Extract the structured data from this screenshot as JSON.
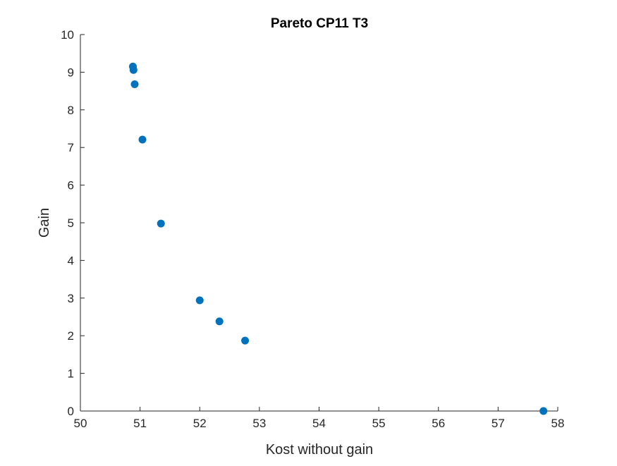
{
  "chart_data": {
    "type": "scatter",
    "title": "Pareto CP11 T3",
    "xlabel": "Kost without gain",
    "ylabel": "Gain",
    "xlim": [
      50,
      58
    ],
    "ylim": [
      0,
      10
    ],
    "xticks": [
      50,
      51,
      52,
      53,
      54,
      55,
      56,
      57,
      58
    ],
    "yticks": [
      0,
      1,
      2,
      3,
      4,
      5,
      6,
      7,
      8,
      9,
      10
    ],
    "grid": false,
    "marker_color": "#0072BD",
    "series": [
      {
        "x": [
          50.88,
          50.89,
          50.91,
          51.04,
          51.35,
          52.0,
          52.33,
          52.76,
          57.76
        ],
        "y": [
          9.15,
          9.06,
          8.68,
          7.21,
          4.98,
          2.94,
          2.38,
          1.87,
          0.0
        ]
      }
    ]
  }
}
